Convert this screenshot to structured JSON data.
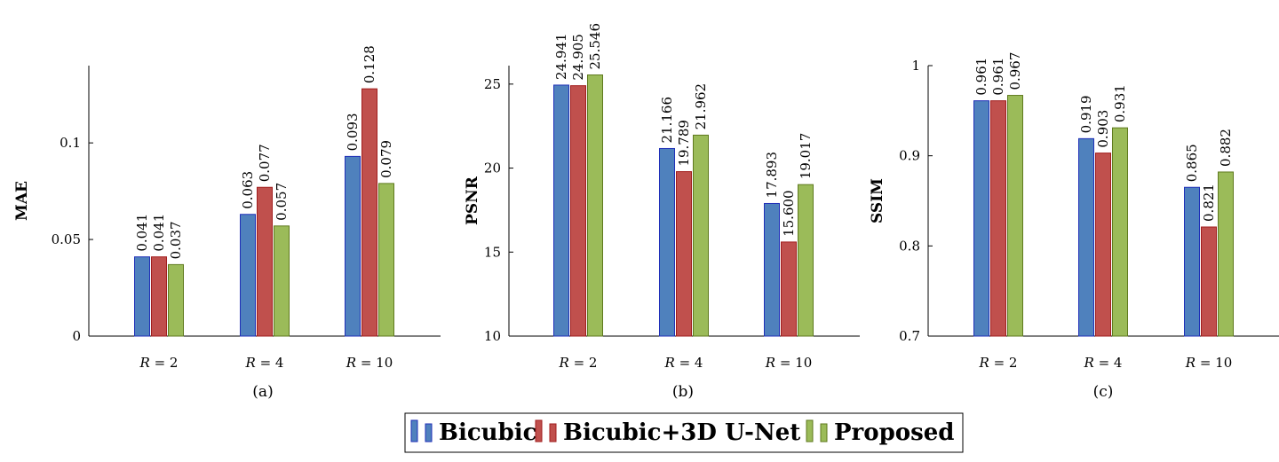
{
  "legend": {
    "entries": [
      {
        "name": "Bicubic",
        "fill": "#4f81bd",
        "stroke": "#1f2fb8"
      },
      {
        "name": "Bicubic+3D U-Net",
        "fill": "#c0504d",
        "stroke": "#a11d1d"
      },
      {
        "name": "Proposed",
        "fill": "#9bbb59",
        "stroke": "#5f7a1e"
      }
    ]
  },
  "chart_data": [
    {
      "type": "bar",
      "caption": "(a)",
      "ylabel": "MAE",
      "xlabel": "",
      "categories": [
        "R = 2",
        "R = 4",
        "R = 10"
      ],
      "ylim": [
        0,
        0.14
      ],
      "yticks": [
        0,
        0.05,
        0.1
      ],
      "ytick_labels": [
        "0",
        "0.05",
        "0.1"
      ],
      "grid": false,
      "series": [
        {
          "name": "Bicubic",
          "values": [
            0.041,
            0.063,
            0.093
          ],
          "labels": [
            "0.041",
            "0.063",
            "0.093"
          ]
        },
        {
          "name": "Bicubic+3D U-Net",
          "values": [
            0.041,
            0.077,
            0.128
          ],
          "labels": [
            "0.041",
            "0.077",
            "0.128"
          ]
        },
        {
          "name": "Proposed",
          "values": [
            0.037,
            0.057,
            0.079
          ],
          "labels": [
            "0.037",
            "0.057",
            "0.079"
          ]
        }
      ]
    },
    {
      "type": "bar",
      "caption": "(b)",
      "ylabel": "PSNR",
      "xlabel": "",
      "categories": [
        "R = 2",
        "R = 4",
        "R = 10"
      ],
      "ylim": [
        10,
        26.1
      ],
      "yticks": [
        10,
        15,
        20,
        25
      ],
      "ytick_labels": [
        "10",
        "15",
        "20",
        "25"
      ],
      "grid": false,
      "series": [
        {
          "name": "Bicubic",
          "values": [
            24.941,
            21.166,
            17.893
          ],
          "labels": [
            "24.941",
            "21.166",
            "17.893"
          ]
        },
        {
          "name": "Bicubic+3D U-Net",
          "values": [
            24.905,
            19.789,
            15.6
          ],
          "labels": [
            "24.905",
            "19.789",
            "15.600"
          ]
        },
        {
          "name": "Proposed",
          "values": [
            25.546,
            21.962,
            19.017
          ],
          "labels": [
            "25.546",
            "21.962",
            "19.017"
          ]
        }
      ]
    },
    {
      "type": "bar",
      "caption": "(c)",
      "ylabel": "SSIM",
      "xlabel": "",
      "categories": [
        "R = 2",
        "R = 4",
        "R = 10"
      ],
      "ylim": [
        0.7,
        1.0
      ],
      "yticks": [
        0.7,
        0.8,
        0.9,
        1.0
      ],
      "ytick_labels": [
        "0.7",
        "0.8",
        "0.9",
        "1"
      ],
      "grid": false,
      "series": [
        {
          "name": "Bicubic",
          "values": [
            0.961,
            0.919,
            0.865
          ],
          "labels": [
            "0.961",
            "0.919",
            "0.865"
          ]
        },
        {
          "name": "Bicubic+3D U-Net",
          "values": [
            0.961,
            0.903,
            0.821
          ],
          "labels": [
            "0.961",
            "0.903",
            "0.821"
          ]
        },
        {
          "name": "Proposed",
          "values": [
            0.967,
            0.931,
            0.882
          ],
          "labels": [
            "0.967",
            "0.931",
            "0.882"
          ]
        }
      ]
    }
  ]
}
